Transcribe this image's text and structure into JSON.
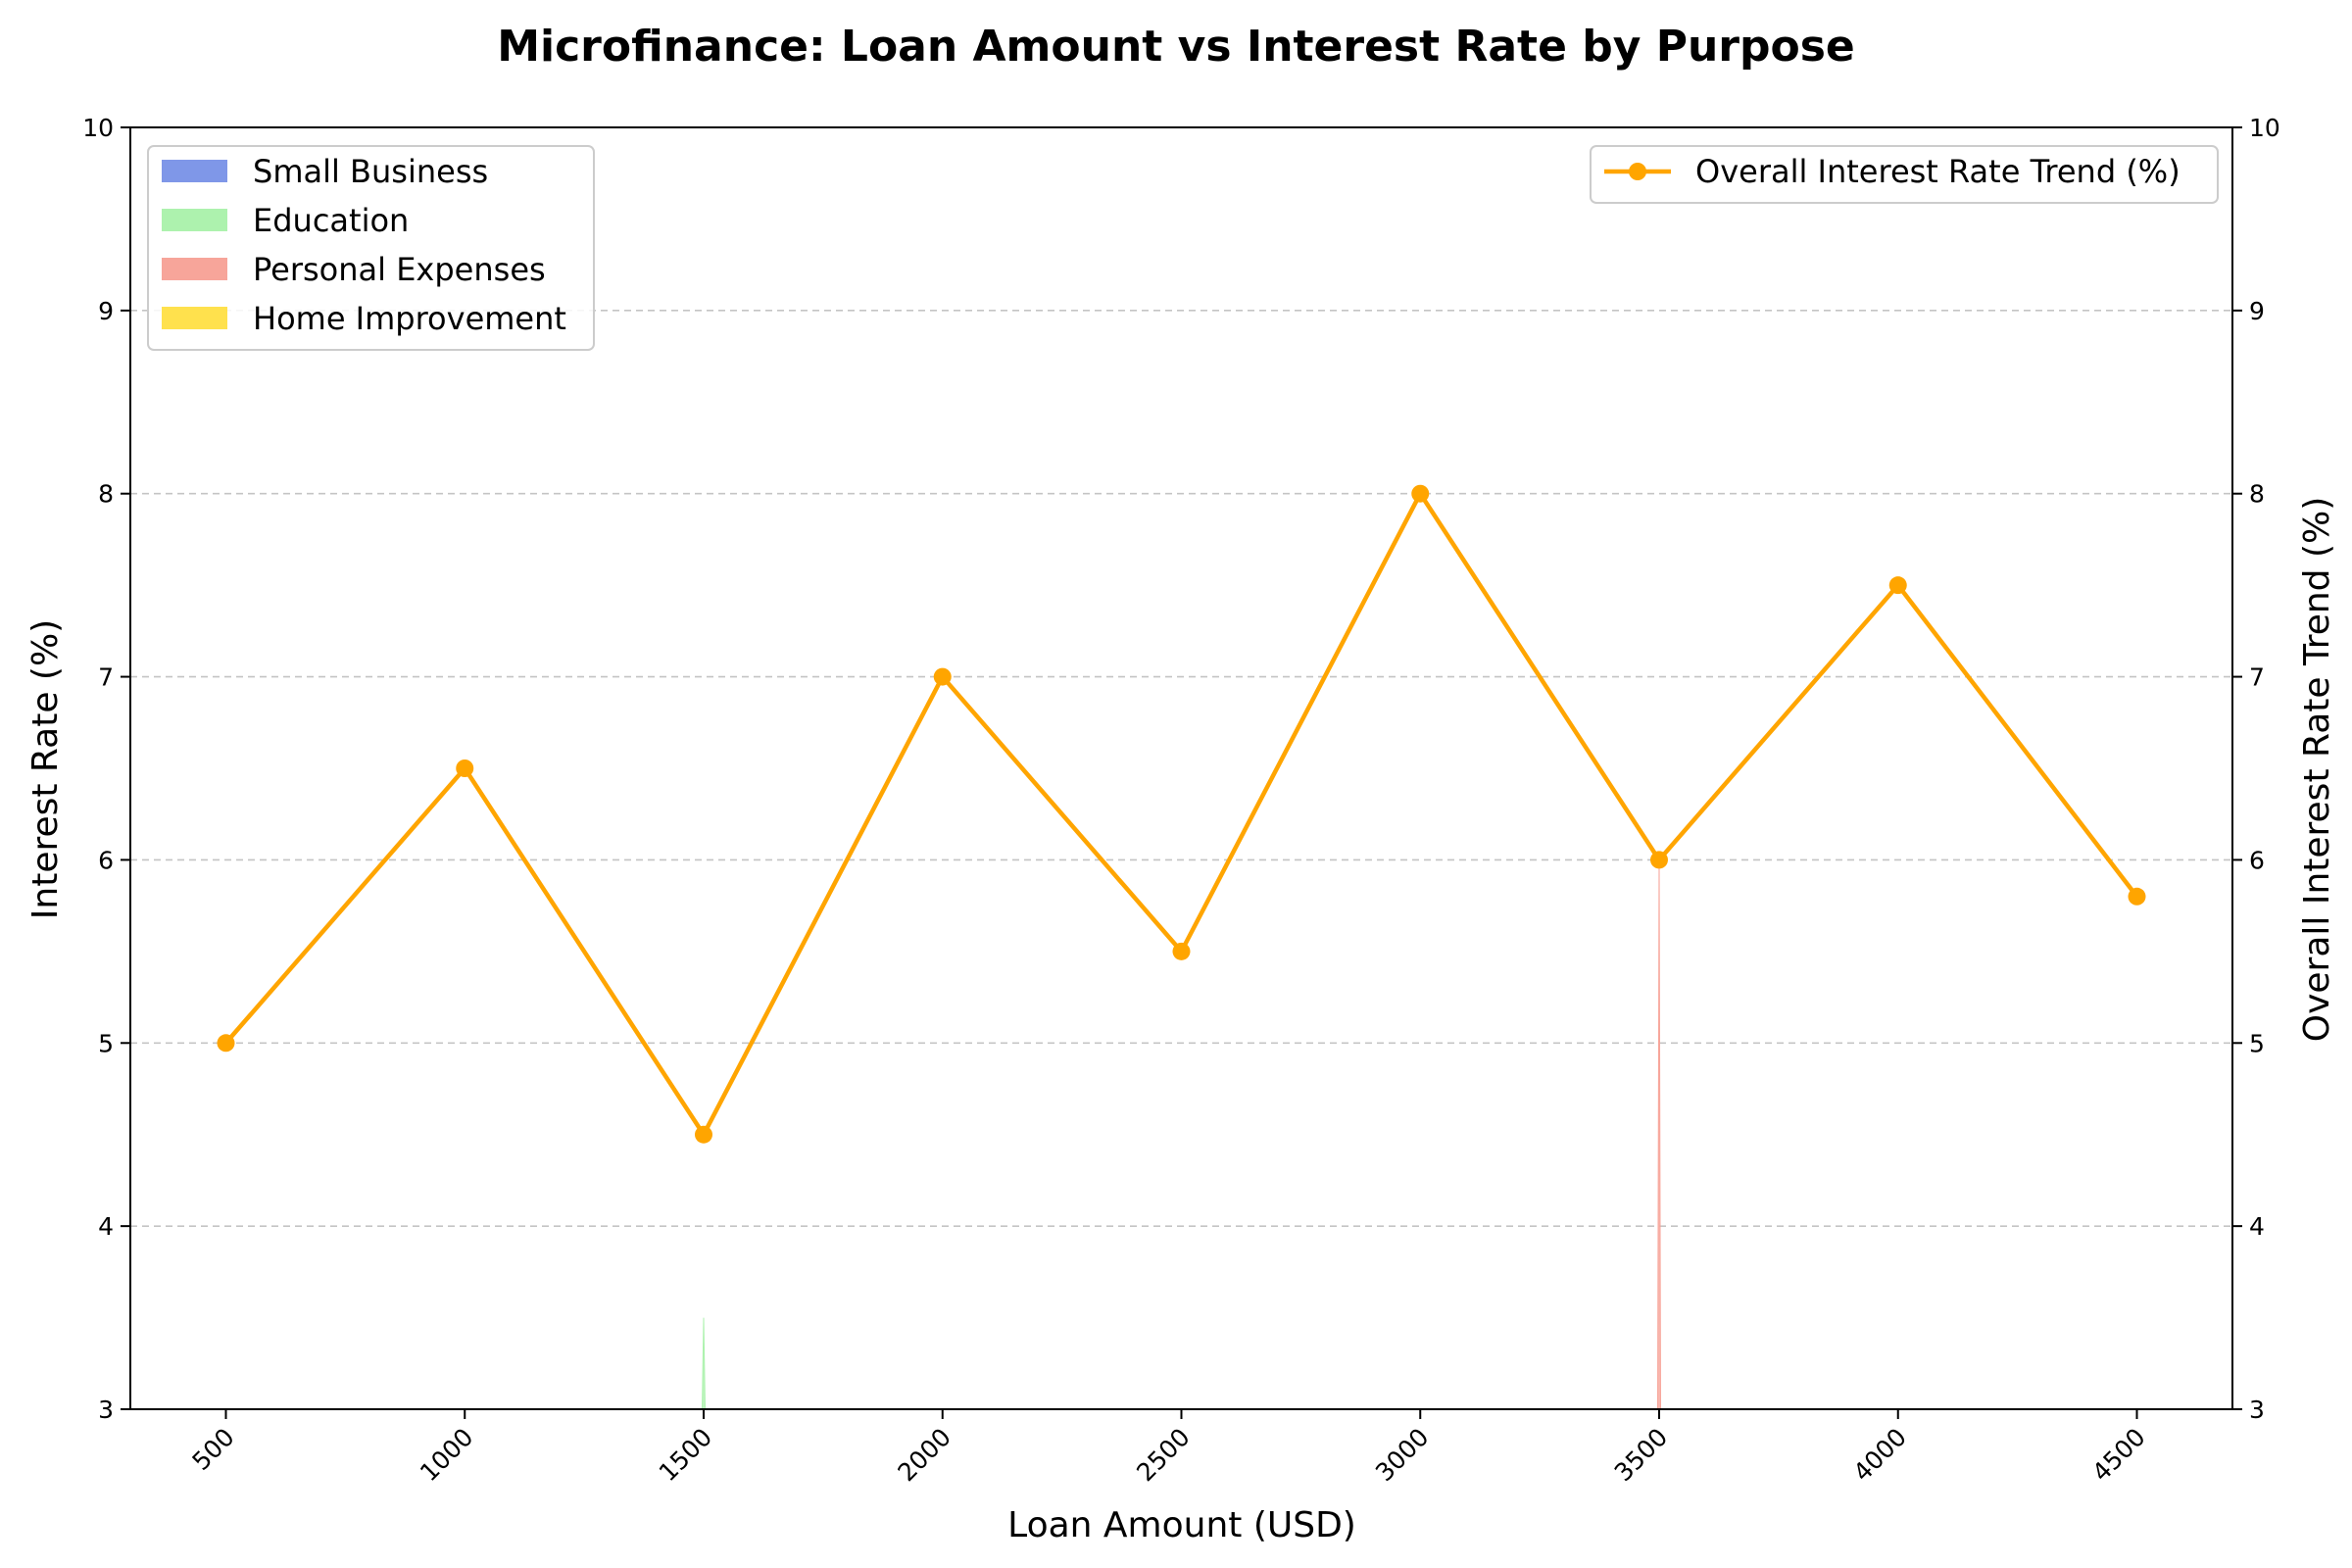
{
  "chart_data": {
    "type": "line",
    "title": "Microfinance: Loan Amount vs Interest Rate by Purpose",
    "xlabel": "Loan Amount (USD)",
    "ylabel": "Interest Rate (%)",
    "ylabel_right": "Overall Interest Rate Trend (%)",
    "x": [
      500,
      1000,
      1500,
      2000,
      2500,
      3000,
      3500,
      4000,
      4500
    ],
    "x_tick_labels": [
      "500",
      "1000",
      "1500",
      "2000",
      "2500",
      "3000",
      "3500",
      "4000",
      "4500"
    ],
    "xlim": [
      300,
      4700
    ],
    "ylim": [
      3,
      10
    ],
    "y_ticks": [
      3,
      4,
      5,
      6,
      7,
      8,
      9,
      10
    ],
    "y_tick_labels": [
      "3",
      "4",
      "5",
      "6",
      "7",
      "8",
      "9",
      "10"
    ],
    "grid": "horizontal dashed",
    "series": [
      {
        "name": "Overall Interest Rate Trend (%)",
        "values": [
          5.0,
          6.5,
          4.5,
          7.0,
          5.5,
          8.0,
          6.0,
          7.5,
          5.8
        ],
        "color": "#FFA500",
        "marker": "circle"
      }
    ],
    "purpose_areas": [
      {
        "name": "Small Business",
        "color": "#7F97E8",
        "x": [],
        "values": []
      },
      {
        "name": "Education",
        "color": "#ADF2AE",
        "x": [
          1500
        ],
        "values": [
          3.5
        ]
      },
      {
        "name": "Personal Expenses",
        "color": "#F7A59A",
        "x": [
          3500
        ],
        "values": [
          6.0
        ]
      },
      {
        "name": "Home Improvement",
        "color": "#FFE14D",
        "x": [],
        "values": []
      }
    ],
    "legend_left": {
      "placement": "top-left",
      "entries": [
        "Small Business",
        "Education",
        "Personal Expenses",
        "Home Improvement"
      ]
    },
    "legend_right": {
      "placement": "top-right",
      "entries": [
        "Overall Interest Rate Trend (%)"
      ]
    }
  }
}
